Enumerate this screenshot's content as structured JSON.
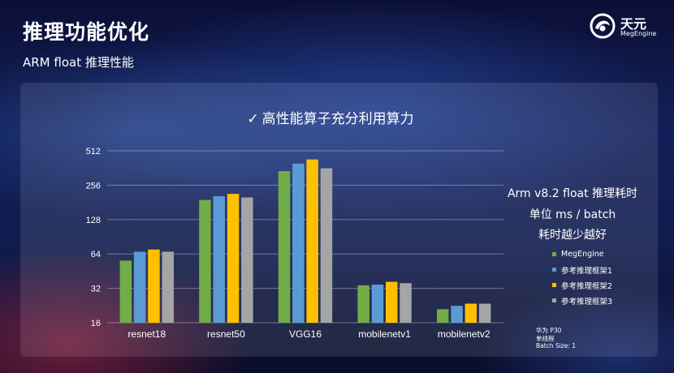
{
  "slide": {
    "title": "推理功能优化",
    "subtitle": "ARM float 推理性能"
  },
  "logo": {
    "text_cn": "天元",
    "text_en": "MegEngine"
  },
  "chart_data": {
    "type": "bar",
    "title": "高性能算子充分利用算力",
    "title_mark": "✓",
    "y_scale": "log2",
    "ylim": [
      16,
      512
    ],
    "yticks": [
      16,
      32,
      64,
      128,
      256,
      512
    ],
    "ytick_labels": [
      "16",
      "32",
      "64",
      "128",
      "256",
      "512"
    ],
    "grid": true,
    "legend_position": "right",
    "categories": [
      "resnet18",
      "resnet50",
      "VGG16",
      "mobilenetv1",
      "mobilenetv2"
    ],
    "series": [
      {
        "name": "MegEngine",
        "color": "#70ad47",
        "values": [
          56,
          190,
          340,
          34,
          21
        ]
      },
      {
        "name": "参考推理框架1",
        "color": "#5b9bd5",
        "values": [
          67,
          205,
          395,
          34.5,
          22.5
        ]
      },
      {
        "name": "参考推理框架2",
        "color": "#ffc000",
        "values": [
          70,
          215,
          430,
          36.5,
          23.5
        ]
      },
      {
        "name": "参考推理框架3",
        "color": "#a5a5a5",
        "values": [
          67,
          200,
          360,
          35.5,
          23.5
        ]
      }
    ]
  },
  "notes": {
    "line1": "Arm v8.2  float 推理耗时",
    "line2": "单位 ms / batch",
    "line3": "耗时越少越好"
  },
  "footnote": {
    "device": "华为 P30",
    "thread": "单线程",
    "batch": "Batch Size: 1"
  }
}
